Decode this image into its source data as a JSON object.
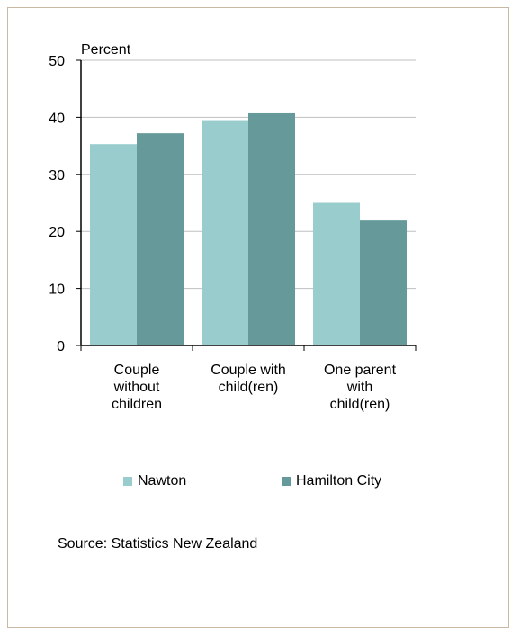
{
  "colors": {
    "nawton": "#99cccc",
    "hamilton": "#669999",
    "frame_border": "#c8b8a4",
    "gridline": "#bfbfbf"
  },
  "legend": {
    "items": [
      {
        "label": "Nawton",
        "color": "#99cccc"
      },
      {
        "label": "Hamilton City",
        "color": "#669999"
      }
    ]
  },
  "source": "Source: Statistics New Zealand",
  "chart_data": {
    "type": "bar",
    "title": "",
    "ylabel": "Percent",
    "xlabel": "",
    "ylim": [
      0,
      50
    ],
    "yticks": [
      0,
      10,
      20,
      30,
      40,
      50
    ],
    "grid": true,
    "legend_position": "bottom",
    "categories": [
      [
        "Couple",
        "without",
        "children"
      ],
      [
        "Couple with",
        "child(ren)"
      ],
      [
        "One parent",
        "with",
        "child(ren)"
      ]
    ],
    "series": [
      {
        "name": "Nawton",
        "values": [
          35.3,
          39.5,
          25.0
        ]
      },
      {
        "name": "Hamilton City",
        "values": [
          37.2,
          40.7,
          21.9
        ]
      }
    ]
  }
}
